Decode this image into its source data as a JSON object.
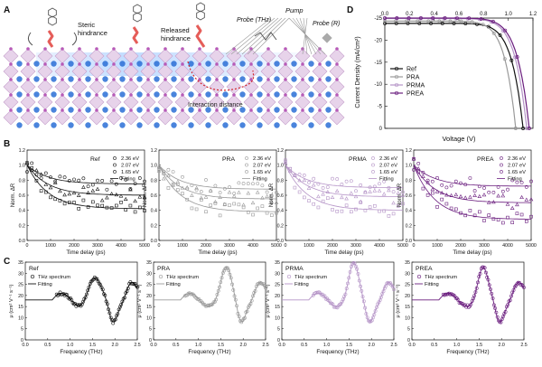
{
  "colors": {
    "ref": "#111111",
    "pra": "#9a9a9a",
    "prma": "#b594c7",
    "prea": "#6a1d7e",
    "grid_blue": "#2a6fd6",
    "probe": "#777777"
  },
  "panel_A": {
    "letter": "A",
    "label_steric": "Steric\nhindrance",
    "label_released": "Released\nhindrance",
    "label_probe_thz": "Probe (THz)",
    "label_pump": "Pump",
    "label_probe_r": "Probe (R)",
    "label_interaction": "Interaction distance"
  },
  "panel_D": {
    "letter": "D",
    "chart_data": {
      "type": "line",
      "xlabel": "Voltage (V)",
      "ylabel": "Current Density (mA/cm²)",
      "xlim": [
        0.0,
        1.2
      ],
      "ylim": [
        0,
        -25
      ],
      "x_ticks": [
        "0.0",
        "0.2",
        "0.4",
        "0.6",
        "0.8",
        "1.0",
        "1.2"
      ],
      "y_ticks": [
        "0",
        "-5",
        "-10",
        "-15",
        "-20",
        "-25"
      ],
      "legend": [
        "Ref",
        "PRA",
        "PRMA",
        "PREA"
      ],
      "series": [
        {
          "name": "Ref",
          "jsc": -23.8,
          "voc": 1.12
        },
        {
          "name": "PRA",
          "jsc": -24.3,
          "voc": 1.06
        },
        {
          "name": "PRMA",
          "jsc": -24.9,
          "voc": 1.15
        },
        {
          "name": "PREA",
          "jsc": -25.0,
          "voc": 1.17
        }
      ]
    }
  },
  "panel_B": {
    "letter": "B",
    "chart_data": [
      {
        "type": "scatter",
        "title": "Ref",
        "xlabel": "Time delay (ps)",
        "ylabel": "Norm. ΔR",
        "xlim": [
          0,
          5000
        ],
        "ylim": [
          0.0,
          1.2
        ],
        "legend": [
          "2.36 eV",
          "2.07 eV",
          "1.65 eV",
          "Fitting"
        ],
        "fit_end": [
          0.75,
          0.6,
          0.42
        ]
      },
      {
        "type": "scatter",
        "title": "PRA",
        "xlabel": "Time delay (ps)",
        "ylabel": "Norm. ΔR",
        "xlim": [
          0,
          5000
        ],
        "ylim": [
          0.0,
          1.2
        ],
        "legend": [
          "2.36 eV",
          "2.07 eV",
          "1.65 eV",
          "Fitting"
        ],
        "fit_end": [
          0.68,
          0.55,
          0.38
        ]
      },
      {
        "type": "scatter",
        "title": "PRMA",
        "xlabel": "Time delay (ps)",
        "ylabel": "Norm. ΔR",
        "xlim": [
          0,
          5000
        ],
        "ylim": [
          0.0,
          1.2
        ],
        "legend": [
          "2.36 eV",
          "2.07 eV",
          "1.65 eV",
          "Fitting"
        ],
        "fit_end": [
          0.7,
          0.58,
          0.4
        ]
      },
      {
        "type": "scatter",
        "title": "PREA",
        "xlabel": "Time delay (ps)",
        "ylabel": "Norm. ΔR",
        "xlim": [
          0,
          5000
        ],
        "ylim": [
          0.0,
          1.2
        ],
        "legend": [
          "2.36 eV",
          "2.07 eV",
          "1.65 eV",
          "Fitting"
        ],
        "fit_end": [
          0.72,
          0.5,
          0.28
        ]
      }
    ],
    "x_ticks": [
      "0",
      "1000",
      "2000",
      "3000",
      "4000",
      "5000"
    ],
    "y_ticks": [
      "0.0",
      "0.2",
      "0.4",
      "0.6",
      "0.8",
      "1.0",
      "1.2"
    ]
  },
  "panel_C": {
    "letter": "C",
    "chart_data": [
      {
        "type": "line",
        "title": "Ref",
        "xlabel": "Frequency (THz)",
        "ylabel": "μ (cm² V⁻¹ s⁻¹)",
        "xlim": [
          0,
          2.5
        ],
        "ylim": [
          0,
          35
        ],
        "legend": [
          "THz spectrum",
          "Fitting"
        ]
      },
      {
        "type": "line",
        "title": "PRA",
        "xlabel": "Frequency (THz)",
        "ylabel": "μ (cm² V⁻¹ s⁻¹)",
        "xlim": [
          0,
          2.5
        ],
        "ylim": [
          0,
          35
        ],
        "legend": [
          "THz spectrum",
          "Fitting"
        ]
      },
      {
        "type": "line",
        "title": "PRMA",
        "xlabel": "Frequency (THz)",
        "ylabel": "μ (cm² V⁻¹ s⁻¹)",
        "xlim": [
          0,
          2.5
        ],
        "ylim": [
          0,
          35
        ],
        "legend": [
          "THz spectrum",
          "Fitting"
        ]
      },
      {
        "type": "line",
        "title": "PREA",
        "xlabel": "Frequency (THz)",
        "ylabel": "μ (cm² V⁻¹ s⁻¹)",
        "xlim": [
          0,
          2.5
        ],
        "ylim": [
          0,
          35
        ],
        "legend": [
          "THz spectrum",
          "Fitting"
        ]
      }
    ],
    "x_ticks": [
      "0.0",
      "0.5",
      "1.0",
      "1.5",
      "2.0",
      "2.5"
    ],
    "y_ticks": [
      "0",
      "5",
      "10",
      "15",
      "20",
      "25",
      "30",
      "35"
    ]
  }
}
